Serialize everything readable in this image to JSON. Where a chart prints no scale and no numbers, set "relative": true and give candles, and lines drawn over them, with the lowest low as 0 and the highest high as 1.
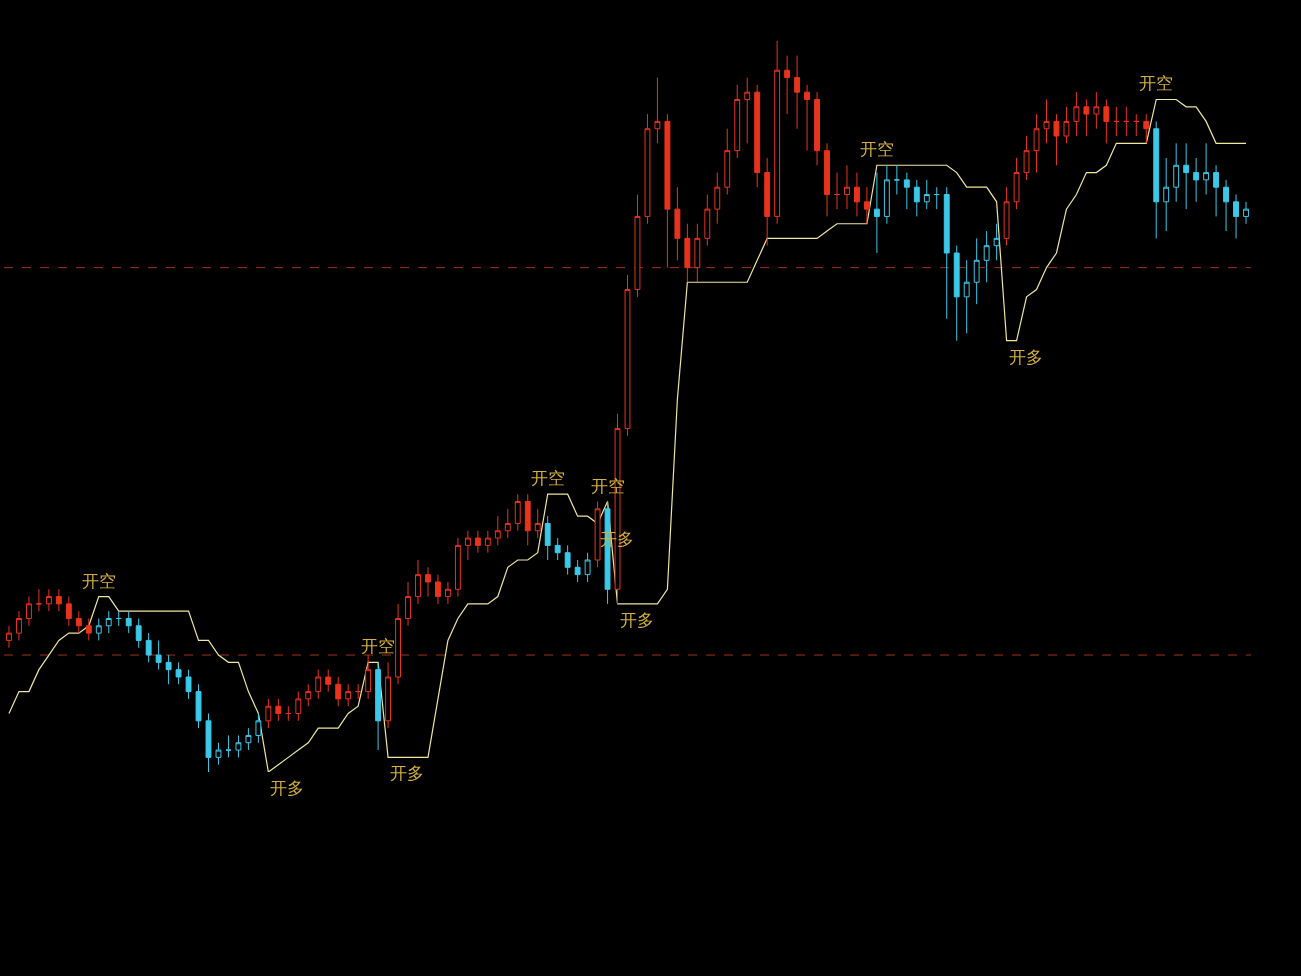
{
  "chart_data": {
    "type": "candlestick",
    "relative": true,
    "categories": [
      null,
      null,
      null,
      null,
      null,
      null,
      null,
      null,
      null,
      null,
      null,
      null,
      null,
      null,
      null,
      null,
      null,
      null,
      null,
      null,
      null,
      null,
      null,
      null,
      null,
      null,
      null,
      null,
      null,
      null,
      null,
      null,
      null,
      null,
      null,
      null,
      null,
      null,
      null,
      null,
      null,
      null,
      null,
      null,
      null,
      null,
      null,
      null,
      null,
      null,
      null,
      null,
      null,
      null,
      null,
      null,
      null,
      null,
      null,
      null,
      null,
      null,
      null,
      null,
      null,
      null,
      null,
      null,
      null,
      null,
      null,
      null,
      null,
      null,
      null,
      null,
      null,
      null,
      null,
      null,
      null,
      null,
      null,
      null,
      null,
      null,
      null,
      null,
      null,
      null,
      null,
      null,
      null,
      null,
      null,
      null,
      null,
      null,
      null,
      null,
      null,
      null,
      null,
      null,
      null,
      null,
      null,
      null,
      null,
      null,
      null,
      null,
      null,
      null,
      null,
      null,
      null,
      null,
      null,
      null,
      null,
      null,
      null,
      null,
      null
    ],
    "ohlc": [
      [
        0.18,
        0.2,
        0.17,
        0.19
      ],
      [
        0.19,
        0.22,
        0.18,
        0.21
      ],
      [
        0.21,
        0.24,
        0.2,
        0.23
      ],
      [
        0.23,
        0.25,
        0.22,
        0.23
      ],
      [
        0.23,
        0.25,
        0.22,
        0.24
      ],
      [
        0.24,
        0.25,
        0.22,
        0.23
      ],
      [
        0.23,
        0.24,
        0.2,
        0.21
      ],
      [
        0.21,
        0.22,
        0.19,
        0.2
      ],
      [
        0.2,
        0.21,
        0.18,
        0.19
      ],
      [
        0.19,
        0.21,
        0.18,
        0.2
      ],
      [
        0.2,
        0.22,
        0.19,
        0.21
      ],
      [
        0.21,
        0.22,
        0.2,
        0.21
      ],
      [
        0.21,
        0.22,
        0.19,
        0.2
      ],
      [
        0.2,
        0.21,
        0.17,
        0.18
      ],
      [
        0.18,
        0.19,
        0.15,
        0.16
      ],
      [
        0.16,
        0.18,
        0.14,
        0.15
      ],
      [
        0.15,
        0.16,
        0.12,
        0.14
      ],
      [
        0.14,
        0.15,
        0.12,
        0.13
      ],
      [
        0.13,
        0.14,
        0.1,
        0.11
      ],
      [
        0.11,
        0.12,
        0.06,
        0.07
      ],
      [
        0.07,
        0.08,
        0.0,
        0.02
      ],
      [
        0.02,
        0.04,
        0.01,
        0.03
      ],
      [
        0.03,
        0.05,
        0.02,
        0.03
      ],
      [
        0.03,
        0.05,
        0.02,
        0.04
      ],
      [
        0.04,
        0.06,
        0.03,
        0.05
      ],
      [
        0.05,
        0.08,
        0.04,
        0.07
      ],
      [
        0.07,
        0.1,
        0.06,
        0.09
      ],
      [
        0.09,
        0.1,
        0.07,
        0.08
      ],
      [
        0.08,
        0.09,
        0.07,
        0.08
      ],
      [
        0.08,
        0.11,
        0.07,
        0.1
      ],
      [
        0.1,
        0.12,
        0.09,
        0.11
      ],
      [
        0.11,
        0.14,
        0.1,
        0.13
      ],
      [
        0.13,
        0.14,
        0.11,
        0.12
      ],
      [
        0.12,
        0.13,
        0.09,
        0.1
      ],
      [
        0.1,
        0.12,
        0.09,
        0.11
      ],
      [
        0.11,
        0.12,
        0.1,
        0.11
      ],
      [
        0.11,
        0.16,
        0.1,
        0.14
      ],
      [
        0.14,
        0.15,
        0.03,
        0.07
      ],
      [
        0.07,
        0.15,
        0.06,
        0.13
      ],
      [
        0.13,
        0.23,
        0.12,
        0.21
      ],
      [
        0.21,
        0.26,
        0.2,
        0.24
      ],
      [
        0.24,
        0.29,
        0.23,
        0.27
      ],
      [
        0.27,
        0.28,
        0.24,
        0.26
      ],
      [
        0.26,
        0.27,
        0.23,
        0.24
      ],
      [
        0.24,
        0.26,
        0.23,
        0.25
      ],
      [
        0.25,
        0.32,
        0.24,
        0.31
      ],
      [
        0.31,
        0.33,
        0.29,
        0.32
      ],
      [
        0.32,
        0.33,
        0.3,
        0.31
      ],
      [
        0.31,
        0.33,
        0.3,
        0.32
      ],
      [
        0.32,
        0.35,
        0.31,
        0.33
      ],
      [
        0.33,
        0.36,
        0.32,
        0.34
      ],
      [
        0.34,
        0.38,
        0.33,
        0.37
      ],
      [
        0.37,
        0.38,
        0.31,
        0.33
      ],
      [
        0.33,
        0.36,
        0.32,
        0.34
      ],
      [
        0.34,
        0.35,
        0.29,
        0.31
      ],
      [
        0.31,
        0.32,
        0.29,
        0.3
      ],
      [
        0.3,
        0.31,
        0.27,
        0.28
      ],
      [
        0.28,
        0.29,
        0.26,
        0.27
      ],
      [
        0.27,
        0.3,
        0.26,
        0.29
      ],
      [
        0.29,
        0.37,
        0.28,
        0.36
      ],
      [
        0.36,
        0.37,
        0.23,
        0.25
      ],
      [
        0.25,
        0.49,
        0.23,
        0.47
      ],
      [
        0.47,
        0.68,
        0.46,
        0.66
      ],
      [
        0.66,
        0.79,
        0.65,
        0.76
      ],
      [
        0.76,
        0.9,
        0.75,
        0.88
      ],
      [
        0.88,
        0.95,
        0.86,
        0.89
      ],
      [
        0.89,
        0.9,
        0.69,
        0.77
      ],
      [
        0.77,
        0.8,
        0.7,
        0.73
      ],
      [
        0.73,
        0.75,
        0.67,
        0.69
      ],
      [
        0.69,
        0.75,
        0.67,
        0.73
      ],
      [
        0.73,
        0.79,
        0.72,
        0.77
      ],
      [
        0.77,
        0.82,
        0.75,
        0.8
      ],
      [
        0.8,
        0.88,
        0.79,
        0.85
      ],
      [
        0.85,
        0.94,
        0.84,
        0.92
      ],
      [
        0.92,
        0.95,
        0.86,
        0.93
      ],
      [
        0.93,
        0.94,
        0.8,
        0.82
      ],
      [
        0.82,
        0.84,
        0.72,
        0.76
      ],
      [
        0.76,
        1.0,
        0.75,
        0.96
      ],
      [
        0.96,
        0.98,
        0.9,
        0.95
      ],
      [
        0.95,
        0.98,
        0.88,
        0.93
      ],
      [
        0.93,
        0.94,
        0.85,
        0.92
      ],
      [
        0.92,
        0.93,
        0.83,
        0.85
      ],
      [
        0.85,
        0.86,
        0.76,
        0.79
      ],
      [
        0.79,
        0.82,
        0.77,
        0.79
      ],
      [
        0.79,
        0.83,
        0.77,
        0.8
      ],
      [
        0.8,
        0.82,
        0.76,
        0.78
      ],
      [
        0.78,
        0.8,
        0.75,
        0.77
      ],
      [
        0.77,
        0.82,
        0.71,
        0.76
      ],
      [
        0.76,
        0.83,
        0.75,
        0.81
      ],
      [
        0.81,
        0.83,
        0.79,
        0.81
      ],
      [
        0.81,
        0.82,
        0.77,
        0.8
      ],
      [
        0.8,
        0.81,
        0.76,
        0.78
      ],
      [
        0.78,
        0.81,
        0.77,
        0.79
      ],
      [
        0.79,
        0.8,
        0.77,
        0.79
      ],
      [
        0.79,
        0.8,
        0.62,
        0.71
      ],
      [
        0.71,
        0.72,
        0.59,
        0.65
      ],
      [
        0.65,
        0.7,
        0.6,
        0.67
      ],
      [
        0.67,
        0.73,
        0.64,
        0.7
      ],
      [
        0.7,
        0.74,
        0.67,
        0.72
      ],
      [
        0.72,
        0.75,
        0.7,
        0.73
      ],
      [
        0.73,
        0.8,
        0.72,
        0.78
      ],
      [
        0.78,
        0.84,
        0.77,
        0.82
      ],
      [
        0.82,
        0.87,
        0.81,
        0.85
      ],
      [
        0.85,
        0.9,
        0.82,
        0.88
      ],
      [
        0.88,
        0.92,
        0.86,
        0.89
      ],
      [
        0.89,
        0.9,
        0.83,
        0.87
      ],
      [
        0.87,
        0.91,
        0.86,
        0.89
      ],
      [
        0.89,
        0.93,
        0.87,
        0.91
      ],
      [
        0.91,
        0.92,
        0.87,
        0.9
      ],
      [
        0.9,
        0.93,
        0.88,
        0.91
      ],
      [
        0.91,
        0.92,
        0.86,
        0.89
      ],
      [
        0.89,
        0.91,
        0.87,
        0.89
      ],
      [
        0.89,
        0.91,
        0.87,
        0.89
      ],
      [
        0.89,
        0.9,
        0.87,
        0.89
      ],
      [
        0.89,
        0.9,
        0.86,
        0.88
      ],
      [
        0.88,
        0.89,
        0.73,
        0.78
      ],
      [
        0.78,
        0.84,
        0.74,
        0.8
      ],
      [
        0.8,
        0.86,
        0.78,
        0.83
      ],
      [
        0.83,
        0.86,
        0.77,
        0.82
      ],
      [
        0.82,
        0.84,
        0.78,
        0.81
      ],
      [
        0.81,
        0.86,
        0.79,
        0.82
      ],
      [
        0.82,
        0.83,
        0.76,
        0.8
      ],
      [
        0.8,
        0.81,
        0.74,
        0.78
      ],
      [
        0.78,
        0.79,
        0.73,
        0.76
      ],
      [
        0.76,
        0.78,
        0.75,
        0.77
      ]
    ],
    "colors": [
      "#e8341c",
      "#e8341c",
      "#e8341c",
      "#e8341c",
      "#e8341c",
      "#e8341c",
      "#e8341c",
      "#e8341c",
      "#e8341c",
      "#3cc8e8",
      "#3cc8e8",
      "#3cc8e8",
      "#3cc8e8",
      "#3cc8e8",
      "#3cc8e8",
      "#3cc8e8",
      "#3cc8e8",
      "#3cc8e8",
      "#3cc8e8",
      "#3cc8e8",
      "#3cc8e8",
      "#3cc8e8",
      "#3cc8e8",
      "#3cc8e8",
      "#3cc8e8",
      "#3cc8e8",
      "#e8341c",
      "#e8341c",
      "#e8341c",
      "#e8341c",
      "#e8341c",
      "#e8341c",
      "#e8341c",
      "#e8341c",
      "#e8341c",
      "#e8341c",
      "#e8341c",
      "#3cc8e8",
      "#e8341c",
      "#e8341c",
      "#e8341c",
      "#e8341c",
      "#e8341c",
      "#e8341c",
      "#e8341c",
      "#e8341c",
      "#e8341c",
      "#e8341c",
      "#e8341c",
      "#e8341c",
      "#e8341c",
      "#e8341c",
      "#e8341c",
      "#e8341c",
      "#3cc8e8",
      "#3cc8e8",
      "#3cc8e8",
      "#3cc8e8",
      "#3cc8e8",
      "#e8341c",
      "#3cc8e8",
      "#e8341c",
      "#e8341c",
      "#e8341c",
      "#e8341c",
      "#e8341c",
      "#e8341c",
      "#e8341c",
      "#e8341c",
      "#e8341c",
      "#e8341c",
      "#e8341c",
      "#e8341c",
      "#e8341c",
      "#e8341c",
      "#e8341c",
      "#e8341c",
      "#e8341c",
      "#e8341c",
      "#e8341c",
      "#e8341c",
      "#e8341c",
      "#e8341c",
      "#e8341c",
      "#e8341c",
      "#e8341c",
      "#e8341c",
      "#3cc8e8",
      "#3cc8e8",
      "#3cc8e8",
      "#3cc8e8",
      "#3cc8e8",
      "#3cc8e8",
      "#3cc8e8",
      "#3cc8e8",
      "#3cc8e8",
      "#3cc8e8",
      "#3cc8e8",
      "#3cc8e8",
      "#3cc8e8",
      "#e8341c",
      "#e8341c",
      "#e8341c",
      "#e8341c",
      "#e8341c",
      "#e8341c",
      "#e8341c",
      "#e8341c",
      "#e8341c",
      "#e8341c",
      "#e8341c",
      "#e8341c",
      "#e8341c",
      "#e8341c",
      "#e8341c",
      "#3cc8e8",
      "#3cc8e8",
      "#3cc8e8",
      "#3cc8e8",
      "#3cc8e8",
      "#3cc8e8",
      "#3cc8e8",
      "#3cc8e8",
      "#3cc8e8",
      "#3cc8e8"
    ],
    "series": [
      {
        "type": "line",
        "color": "#efe6a0",
        "values": [
          0.08,
          0.11,
          0.11,
          0.14,
          0.16,
          0.18,
          0.19,
          0.19,
          0.2,
          0.24,
          0.24,
          0.22,
          0.22,
          0.22,
          0.22,
          0.22,
          0.22,
          0.22,
          0.22,
          0.18,
          0.18,
          0.16,
          0.15,
          0.15,
          0.11,
          0.08,
          0.0,
          0.01,
          0.02,
          0.03,
          0.04,
          0.06,
          0.06,
          0.06,
          0.08,
          0.09,
          0.15,
          0.15,
          0.02,
          0.02,
          0.02,
          0.02,
          0.02,
          0.1,
          0.18,
          0.21,
          0.23,
          0.23,
          0.23,
          0.24,
          0.28,
          0.29,
          0.29,
          0.3,
          0.38,
          0.38,
          0.38,
          0.35,
          0.35,
          0.34,
          0.37,
          0.23,
          0.23,
          0.23,
          0.23,
          0.23,
          0.25,
          0.51,
          0.67,
          0.67,
          0.67,
          0.67,
          0.67,
          0.67,
          0.67,
          0.7,
          0.73,
          0.73,
          0.73,
          0.73,
          0.73,
          0.73,
          0.74,
          0.75,
          0.75,
          0.75,
          0.75,
          0.83,
          0.83,
          0.83,
          0.83,
          0.83,
          0.83,
          0.83,
          0.83,
          0.82,
          0.8,
          0.8,
          0.8,
          0.78,
          0.59,
          0.59,
          0.65,
          0.66,
          0.69,
          0.71,
          0.77,
          0.79,
          0.82,
          0.82,
          0.83,
          0.86,
          0.86,
          0.86,
          0.86,
          0.92,
          0.92,
          0.92,
          0.91,
          0.91,
          0.89,
          0.86,
          0.86,
          0.86,
          0.86
        ]
      }
    ],
    "ref_lines": [
      {
        "axis": "y",
        "value": 0.69,
        "color": "#a0301c",
        "line_style": "dashed"
      },
      {
        "axis": "y",
        "value": 0.16,
        "color": "#a0301c",
        "line_style": "dashed"
      }
    ],
    "annotations": [
      "开空",
      "开多",
      "开空",
      "开多",
      "开空",
      "开多",
      "开空",
      "开多",
      "开空",
      "开多",
      "开空"
    ]
  }
}
